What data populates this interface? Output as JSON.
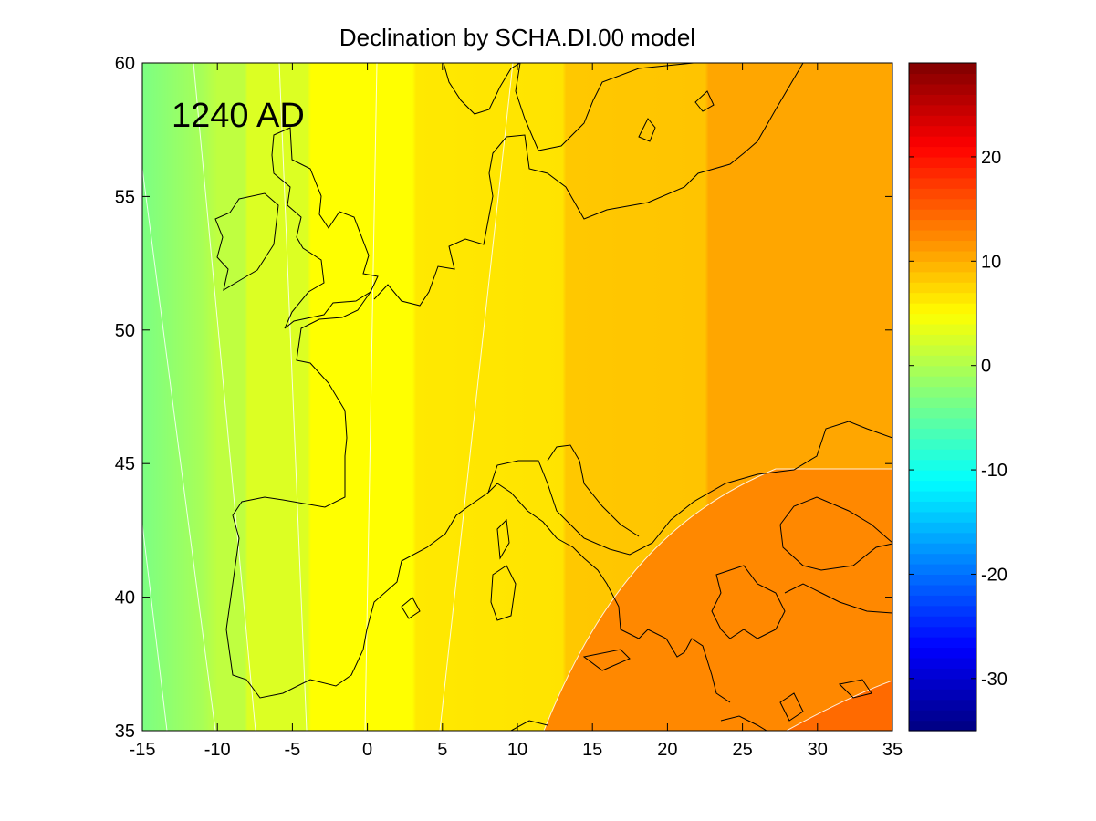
{
  "chart_data": {
    "type": "heatmap",
    "title": "Declination by SCHA.DI.00 model",
    "annotation": "1240 AD",
    "xlim": [
      -15,
      35
    ],
    "ylim": [
      35,
      60
    ],
    "x_ticks": [
      "-15",
      "-10",
      "-5",
      "0",
      "5",
      "10",
      "15",
      "20",
      "25",
      "30",
      "35"
    ],
    "y_ticks": [
      "35",
      "40",
      "45",
      "50",
      "55",
      "60"
    ],
    "colorbar": {
      "colormap": "jet",
      "range": [
        -35,
        29
      ],
      "ticks": [
        "20",
        "10",
        "0",
        "-10",
        "-20",
        "-30"
      ]
    },
    "contour_levels": [
      -2,
      0,
      2,
      4,
      6,
      8,
      10,
      12
    ]
  }
}
